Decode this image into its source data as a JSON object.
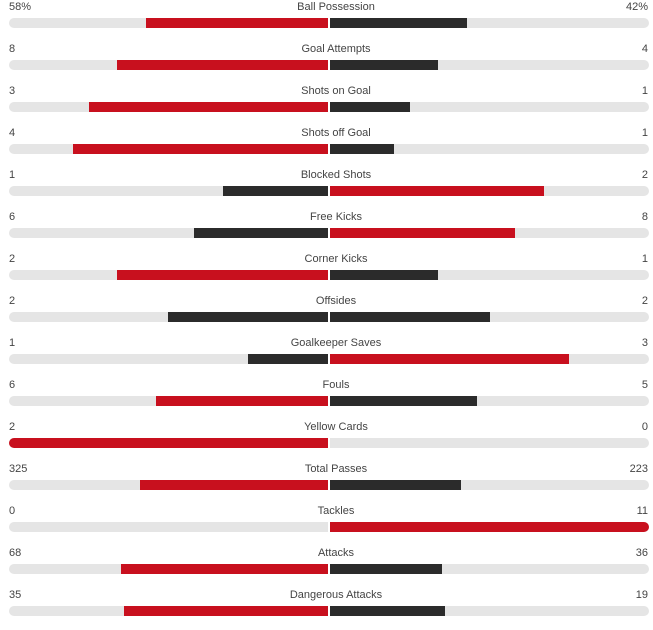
{
  "colors": {
    "leader": "#c8101e",
    "trailer": "#2b2b2b",
    "track": "#e5e5e5"
  },
  "stats": [
    {
      "label": "Ball Possession",
      "home": "58%",
      "away": "42%",
      "home_fill": 0.57,
      "away_fill": 0.43
    },
    {
      "label": "Goal Attempts",
      "home": "8",
      "away": "4",
      "home_fill": 0.66,
      "away_fill": 0.34
    },
    {
      "label": "Shots on Goal",
      "home": "3",
      "away": "1",
      "home_fill": 0.75,
      "away_fill": 0.25
    },
    {
      "label": "Shots off Goal",
      "home": "4",
      "away": "1",
      "home_fill": 0.8,
      "away_fill": 0.2
    },
    {
      "label": "Blocked Shots",
      "home": "1",
      "away": "2",
      "home_fill": 0.33,
      "away_fill": 0.67
    },
    {
      "label": "Free Kicks",
      "home": "6",
      "away": "8",
      "home_fill": 0.42,
      "away_fill": 0.58
    },
    {
      "label": "Corner Kicks",
      "home": "2",
      "away": "1",
      "home_fill": 0.66,
      "away_fill": 0.34
    },
    {
      "label": "Offsides",
      "home": "2",
      "away": "2",
      "home_fill": 0.5,
      "away_fill": 0.5
    },
    {
      "label": "Goalkeeper Saves",
      "home": "1",
      "away": "3",
      "home_fill": 0.25,
      "away_fill": 0.75
    },
    {
      "label": "Fouls",
      "home": "6",
      "away": "5",
      "home_fill": 0.54,
      "away_fill": 0.46
    },
    {
      "label": "Yellow Cards",
      "home": "2",
      "away": "0",
      "home_fill": 1.0,
      "away_fill": 0.0
    },
    {
      "label": "Total Passes",
      "home": "325",
      "away": "223",
      "home_fill": 0.59,
      "away_fill": 0.41
    },
    {
      "label": "Tackles",
      "home": "0",
      "away": "11",
      "home_fill": 0.0,
      "away_fill": 1.0
    },
    {
      "label": "Attacks",
      "home": "68",
      "away": "36",
      "home_fill": 0.65,
      "away_fill": 0.35
    },
    {
      "label": "Dangerous Attacks",
      "home": "35",
      "away": "19",
      "home_fill": 0.64,
      "away_fill": 0.36
    }
  ]
}
